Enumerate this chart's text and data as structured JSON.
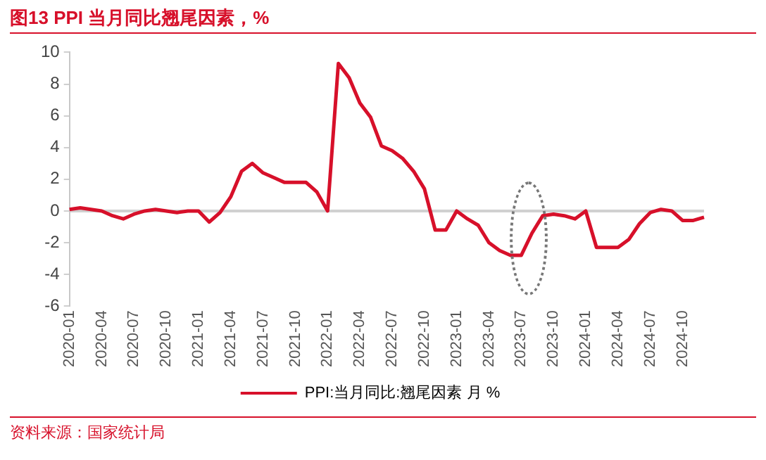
{
  "chart_data": {
    "type": "line",
    "title": "图13  PPI 当月同比翘尾因素，%",
    "categories": [
      "2020-01",
      null,
      null,
      "2020-04",
      null,
      null,
      "2020-07",
      null,
      null,
      "2020-10",
      null,
      null,
      "2021-01",
      null,
      null,
      "2021-04",
      null,
      null,
      "2021-07",
      null,
      null,
      "2021-10",
      null,
      null,
      "2022-01",
      null,
      null,
      "2022-04",
      null,
      null,
      "2022-07",
      null,
      null,
      "2022-10",
      null,
      null,
      "2023-01",
      null,
      null,
      "2023-04",
      null,
      null,
      "2023-07",
      null,
      null,
      "2023-10",
      null,
      null,
      "2024-01",
      null,
      null,
      "2024-04",
      null,
      null,
      "2024-07",
      null,
      null,
      "2024-10",
      null,
      null
    ],
    "series": [
      {
        "name": "PPI:当月同比:翘尾因素 月 %",
        "color": "#d7102a",
        "values": [
          0.1,
          0.2,
          0.1,
          0,
          -0.3,
          -0.5,
          -0.2,
          0,
          0.1,
          0,
          -0.1,
          0,
          0,
          -0.7,
          -0.1,
          0.9,
          2.5,
          3.0,
          2.4,
          2.1,
          1.8,
          1.8,
          1.8,
          1.2,
          0,
          9.3,
          8.4,
          6.8,
          5.9,
          4.1,
          3.8,
          3.3,
          2.5,
          1.4,
          -1.2,
          -1.2,
          0,
          -0.5,
          -0.9,
          -2.0,
          -2.5,
          -2.8,
          -2.8,
          -1.4,
          -0.3,
          -0.2,
          -0.3,
          -0.5,
          0,
          -2.3,
          -2.3,
          -2.3,
          -1.8,
          -0.8,
          -0.1,
          0.1,
          0,
          -0.6,
          -0.6,
          -0.4
        ]
      }
    ],
    "ref_lines": [
      {
        "axis": "y",
        "value": 0,
        "color": "#d0d0d0"
      }
    ],
    "ylim": [
      -6,
      10
    ],
    "yticks": [
      -6,
      -4,
      -2,
      0,
      2,
      4,
      6,
      8,
      10
    ],
    "grid": false,
    "legend": "bottom",
    "marker": "none",
    "line_style": "solid",
    "annotations": [
      "资料来源：国家统计局"
    ]
  }
}
